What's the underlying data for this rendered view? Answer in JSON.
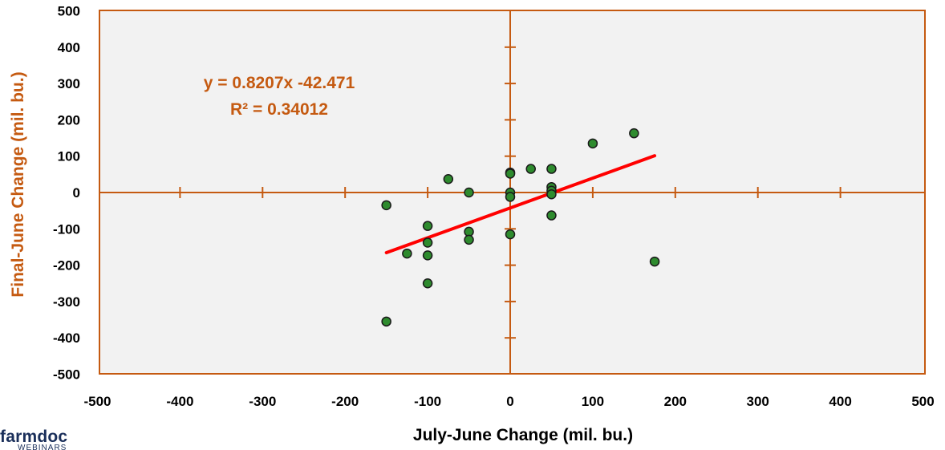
{
  "chart_data": {
    "type": "scatter",
    "xlabel": "July-June Change (mil. bu.)",
    "ylabel": "Final-June Change (mil. bu.)",
    "xlim": [
      -500,
      500
    ],
    "ylim": [
      -500,
      500
    ],
    "x_ticks": [
      "-500",
      "-400",
      "-300",
      "-200",
      "-100",
      "0",
      "100",
      "200",
      "300",
      "400",
      "500"
    ],
    "y_ticks": [
      "500",
      "400",
      "300",
      "200",
      "100",
      "0",
      "-100",
      "-200",
      "-300",
      "-400",
      "-500"
    ],
    "grid": false,
    "series": [
      {
        "points": [
          {
            "x": -150,
            "y": -35
          },
          {
            "x": -150,
            "y": -355
          },
          {
            "x": -125,
            "y": -168
          },
          {
            "x": -100,
            "y": -92
          },
          {
            "x": -100,
            "y": -138
          },
          {
            "x": -100,
            "y": -173
          },
          {
            "x": -100,
            "y": -250
          },
          {
            "x": -75,
            "y": 37
          },
          {
            "x": -50,
            "y": 0
          },
          {
            "x": -50,
            "y": -108
          },
          {
            "x": -50,
            "y": -130
          },
          {
            "x": 0,
            "y": 55
          },
          {
            "x": 0,
            "y": 52
          },
          {
            "x": 0,
            "y": 0
          },
          {
            "x": 0,
            "y": -12
          },
          {
            "x": 0,
            "y": -115
          },
          {
            "x": 25,
            "y": 65
          },
          {
            "x": 50,
            "y": 65
          },
          {
            "x": 50,
            "y": 15
          },
          {
            "x": 50,
            "y": 5
          },
          {
            "x": 50,
            "y": -5
          },
          {
            "x": 50,
            "y": -63
          },
          {
            "x": 100,
            "y": 135
          },
          {
            "x": 150,
            "y": 163
          },
          {
            "x": 175,
            "y": -190
          }
        ]
      }
    ],
    "trendline": {
      "slope": 0.8207,
      "intercept": -42.471,
      "x_range": [
        -150,
        175
      ],
      "equation": "y = 0.8207x -42.471",
      "r_squared": "R² = 0.34012"
    },
    "colors": {
      "axis": "#c55a11",
      "axis_title": "#c55a11",
      "plot_background": "#f2f2f2",
      "marker_fill": "#2e8b2e",
      "marker_edge": "#1a1a1a",
      "trendline": "#ff0000"
    }
  },
  "logo": {
    "name": "farmdoc",
    "subtitle": "WEBINARS"
  }
}
